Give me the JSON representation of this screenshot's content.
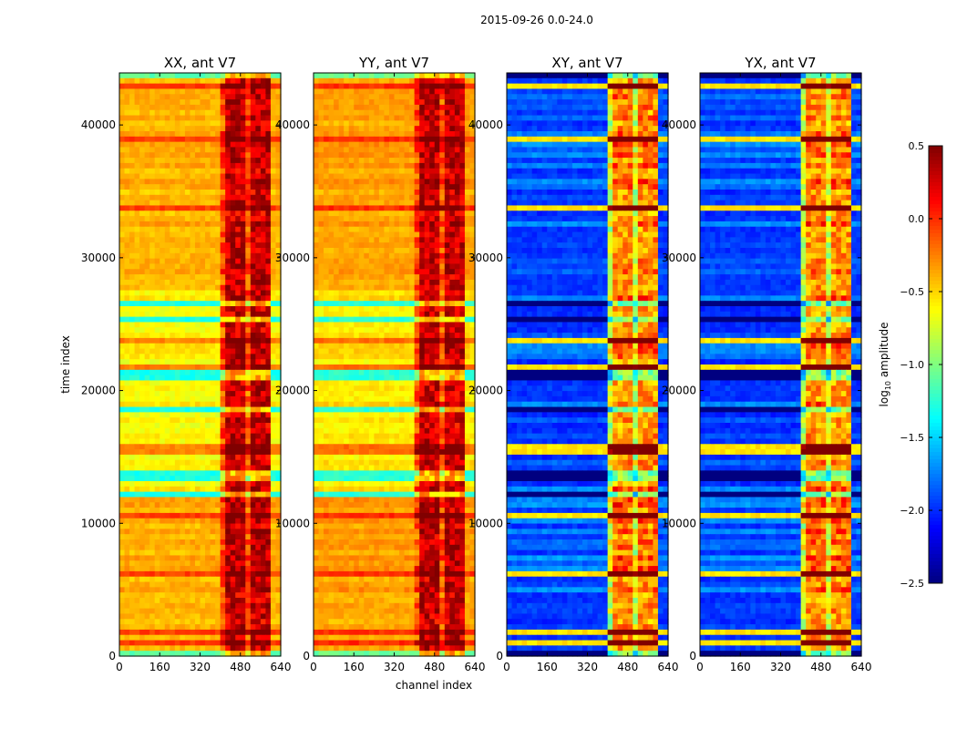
{
  "chart_data": {
    "type": "heatmap",
    "title": "2015-09-26 0.0-24.0",
    "xlabel": "channel index",
    "ylabel": "time index",
    "xlim": [
      0,
      640
    ],
    "ylim": [
      0,
      43920
    ],
    "xticks": [
      "0",
      "160",
      "320",
      "480",
      "640"
    ],
    "yticks": [
      "0",
      "10000",
      "20000",
      "30000",
      "40000"
    ],
    "xtick_values": [
      0,
      160,
      320,
      480,
      640
    ],
    "ytick_values": [
      0,
      10000,
      20000,
      30000,
      40000
    ],
    "panels": [
      {
        "title": "XX, ant V7",
        "base_level": -0.4,
        "band_level": 0.3,
        "band_channels": [
          410,
          600
        ]
      },
      {
        "title": "YY, ant V7",
        "base_level": -0.35,
        "band_level": 0.3,
        "band_channels": [
          410,
          600
        ]
      },
      {
        "title": "XY, ant V7",
        "base_level": -1.95,
        "band_level": -0.3,
        "band_channels": [
          410,
          600
        ]
      },
      {
        "title": "YX, ant V7",
        "base_level": -1.95,
        "band_level": -0.3,
        "band_channels": [
          410,
          600
        ]
      }
    ],
    "colorbar": {
      "label": "log10 amplitude",
      "label_main": "log",
      "label_sub": "10",
      "label_rest": " amplitude",
      "range": [
        -2.5,
        0.5
      ],
      "ticks": [
        "0.5",
        "0.0",
        "−0.5",
        "−1.0",
        "−1.5",
        "−2.0",
        "−2.5"
      ],
      "tick_values": [
        0.5,
        0.0,
        -0.5,
        -1.0,
        -1.5,
        -2.0,
        -2.5
      ],
      "colormap": "jet"
    }
  }
}
